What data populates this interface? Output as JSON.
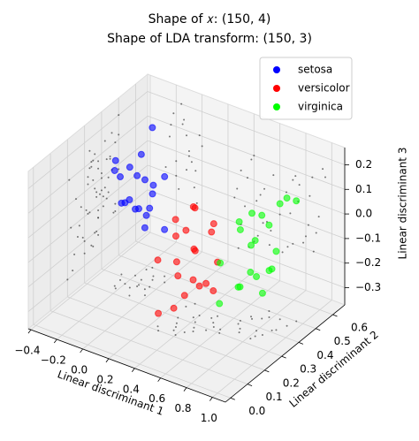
{
  "chart_data": {
    "type": "scatter3d",
    "title": [
      "Shape of 𝑥: (150, 4)",
      "Shape of LDA transform: (150, 3)"
    ],
    "xlabel": "Linear discriminant 1",
    "ylabel": "Linear discriminant 2",
    "zlabel": "Linear discriminant 3",
    "xlim": [
      -0.42,
      1.1
    ],
    "ylim": [
      -0.03,
      0.67
    ],
    "zlim": [
      -0.37,
      0.27
    ],
    "xticks": [
      {
        "value": -0.4,
        "label": "−0.4"
      },
      {
        "value": -0.2,
        "label": "−0.2"
      },
      {
        "value": 0,
        "label": "0.0"
      },
      0.2,
      0.4,
      0.6,
      0.8,
      {
        "value": 1,
        "label": "1.0"
      }
    ],
    "yticks": [
      {
        "value": 0,
        "label": "0.0"
      },
      0.1,
      0.2,
      0.3,
      0.4,
      0.5,
      0.6
    ],
    "zticks": [
      {
        "value": -0.3,
        "label": "−0.3"
      },
      {
        "value": -0.2,
        "label": "−0.2"
      },
      {
        "value": -0.1,
        "label": "−0.1"
      },
      {
        "value": 0,
        "label": "0.0"
      },
      0.1,
      0.2
    ],
    "grid": true,
    "legend": "upper right",
    "series": [
      {
        "name": "setosa",
        "color": "#0000ff",
        "x": [
          -0.25,
          -0.2,
          -0.15,
          -0.1,
          -0.05,
          -0.22,
          -0.18,
          -0.12,
          -0.08,
          -0.02,
          -0.28,
          -0.16,
          -0.1,
          -0.06,
          0.0,
          -0.2,
          -0.14,
          -0.04,
          -0.24,
          -0.12
        ],
        "y": [
          0.38,
          0.43,
          0.36,
          0.46,
          0.4,
          0.33,
          0.48,
          0.38,
          0.44,
          0.35,
          0.41,
          0.5,
          0.32,
          0.38,
          0.45,
          0.37,
          0.42,
          0.48,
          0.34,
          0.39
        ],
        "z": [
          0.05,
          -0.1,
          0.12,
          0.0,
          -0.05,
          0.15,
          -0.15,
          0.08,
          -0.02,
          0.1,
          -0.08,
          0.2,
          0.02,
          -0.12,
          0.06,
          -0.04,
          0.14,
          -0.18,
          0.1,
          -0.06
        ]
      },
      {
        "name": "versicolor",
        "color": "#ff0000",
        "x": [
          0.25,
          0.3,
          0.35,
          0.4,
          0.45,
          0.5,
          0.55,
          0.28,
          0.33,
          0.38,
          0.43,
          0.48,
          0.53,
          0.3,
          0.36,
          0.42,
          0.47,
          0.52,
          0.27,
          0.4
        ],
        "y": [
          0.22,
          0.3,
          0.25,
          0.35,
          0.28,
          0.38,
          0.32,
          0.2,
          0.27,
          0.33,
          0.24,
          0.36,
          0.29,
          0.4,
          0.23,
          0.31,
          0.26,
          0.34,
          0.37,
          0.21
        ],
        "z": [
          -0.1,
          -0.2,
          0.0,
          -0.25,
          -0.05,
          -0.15,
          0.05,
          -0.3,
          -0.12,
          0.08,
          -0.22,
          -0.02,
          -0.18,
          0.02,
          -0.28,
          -0.08,
          -0.16,
          -0.24,
          -0.06,
          0.1
        ]
      },
      {
        "name": "virginica",
        "color": "#00ff00",
        "x": [
          0.6,
          0.65,
          0.7,
          0.75,
          0.8,
          0.85,
          0.9,
          0.95,
          0.62,
          0.68,
          0.72,
          0.78,
          0.83,
          0.88,
          0.93,
          0.66,
          0.74,
          0.82,
          0.7,
          0.86
        ],
        "y": [
          0.32,
          0.4,
          0.36,
          0.45,
          0.38,
          0.48,
          0.42,
          0.5,
          0.3,
          0.44,
          0.34,
          0.47,
          0.35,
          0.41,
          0.46,
          0.38,
          0.5,
          0.33,
          0.43,
          0.37
        ],
        "z": [
          -0.1,
          0.0,
          -0.2,
          0.05,
          -0.15,
          0.1,
          -0.05,
          0.12,
          -0.25,
          -0.08,
          0.08,
          -0.18,
          0.02,
          -0.12,
          0.15,
          -0.22,
          -0.02,
          -0.1,
          0.06,
          -0.2
        ]
      }
    ]
  }
}
